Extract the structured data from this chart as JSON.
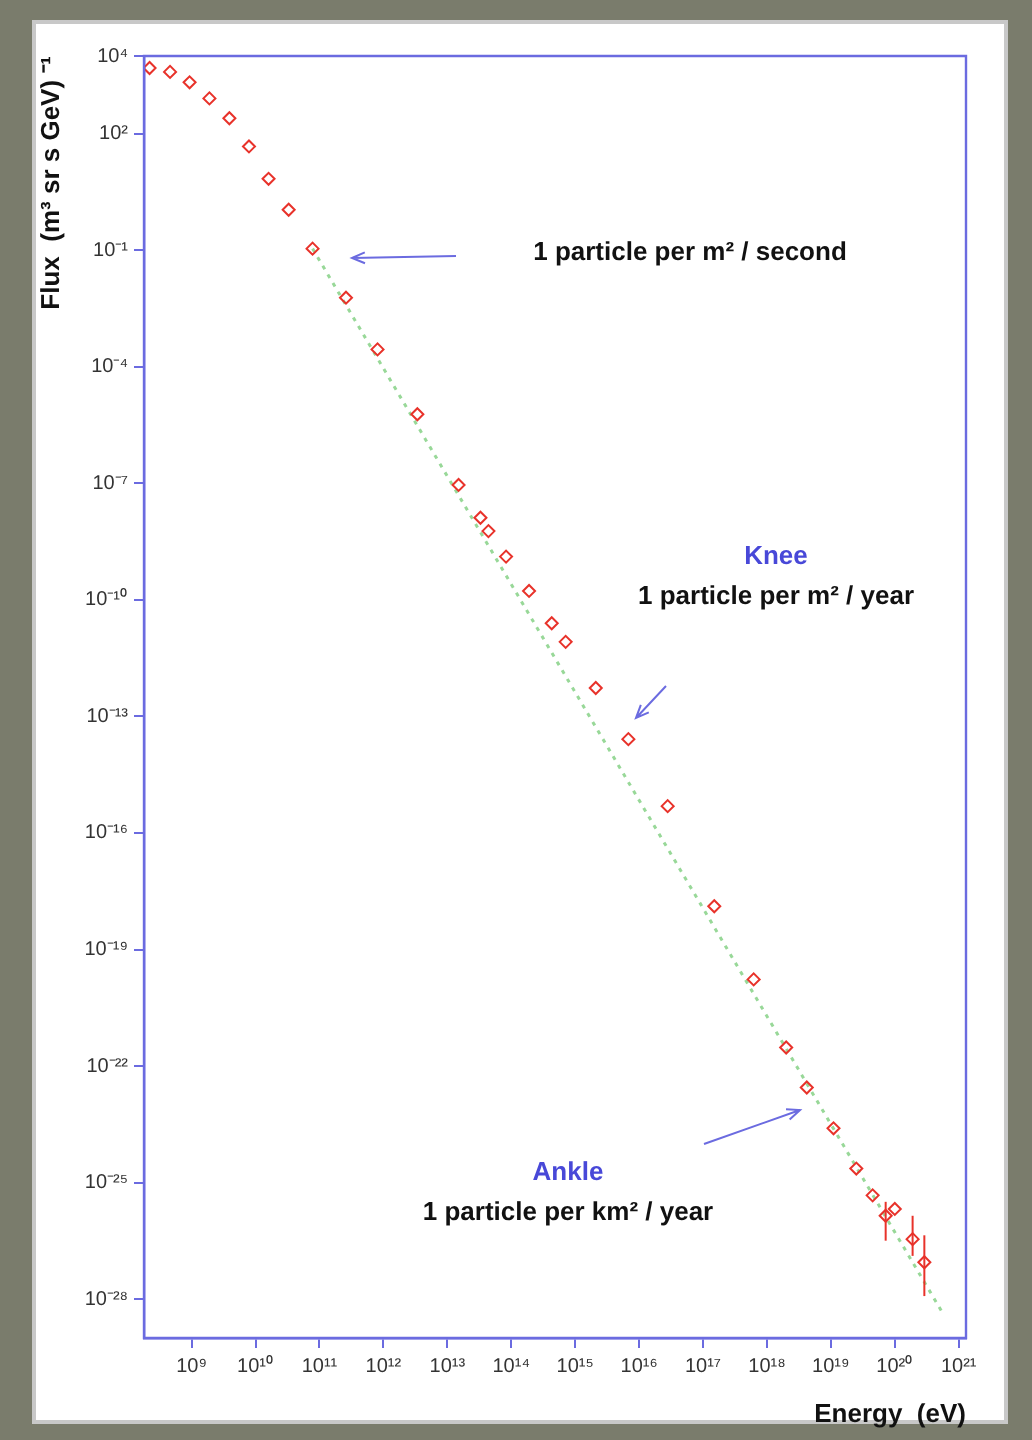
{
  "chart_data": {
    "type": "scatter",
    "xlabel": "Energy  (eV)",
    "ylabel": "Flux  (m³ sr s GeV) ⁻¹",
    "log": "xy",
    "grid": false,
    "legend": false,
    "xlim": [
      180000000.0,
      1.3e+21
    ],
    "ylim": [
      1e-29,
      10000.0
    ],
    "xticks": [
      {
        "value": 1000000000.0,
        "label": "10⁹"
      },
      {
        "value": 10000000000.0,
        "label": "10¹⁰"
      },
      {
        "value": 100000000000.0,
        "label": "10¹¹"
      },
      {
        "value": 1000000000000.0,
        "label": "10¹²"
      },
      {
        "value": 10000000000000.0,
        "label": "10¹³"
      },
      {
        "value": 100000000000000.0,
        "label": "10¹⁴"
      },
      {
        "value": 1000000000000000.0,
        "label": "10¹⁵"
      },
      {
        "value": 1e+16,
        "label": "10¹⁶"
      },
      {
        "value": 1e+17,
        "label": "10¹⁷"
      },
      {
        "value": 1e+18,
        "label": "10¹⁸"
      },
      {
        "value": 1e+19,
        "label": "10¹⁹"
      },
      {
        "value": 1e+20,
        "label": "10²⁰"
      },
      {
        "value": 1e+21,
        "label": "10²¹"
      }
    ],
    "yticks": [
      {
        "value": 10000.0,
        "label": "10⁴"
      },
      {
        "value": 100.0,
        "label": "10²"
      },
      {
        "value": 0.1,
        "label": "10⁻¹"
      },
      {
        "value": 0.0001,
        "label": "10⁻⁴"
      },
      {
        "value": 1e-07,
        "label": "10⁻⁷"
      },
      {
        "value": 1e-10,
        "label": "10⁻¹⁰"
      },
      {
        "value": 1e-13,
        "label": "10⁻¹³"
      },
      {
        "value": 1e-16,
        "label": "10⁻¹⁶"
      },
      {
        "value": 1e-19,
        "label": "10⁻¹⁹"
      },
      {
        "value": 1e-22,
        "label": "10⁻²²"
      },
      {
        "value": 1e-25,
        "label": "10⁻²⁵"
      },
      {
        "value": 1e-28,
        "label": "10⁻²⁸"
      }
    ],
    "series": [
      {
        "type": "scatter",
        "color": "#e8322a",
        "marker": "diamond",
        "x": [
          220000000.0,
          460000000.0,
          930000000.0,
          1900000000.0,
          3900000000.0,
          7900000000.0,
          16000000000.0,
          33000000000.0,
          78000000000.0,
          260000000000.0,
          810000000000.0,
          3400000000000.0,
          15000000000000.0,
          33000000000000.0,
          44000000000000.0,
          83000000000000.0,
          190000000000000.0,
          430000000000000.0,
          710000000000000.0,
          2100000000000000.0,
          6800000000000000.0,
          2.8e+16,
          1.5e+17,
          6.2e+17,
          2e+18,
          4.2e+18,
          1.1e+19,
          2.5e+19,
          4.5e+19,
          7.2e+19,
          1e+20,
          1.9e+20,
          2.9e+20
        ],
        "values": [
          4900.0,
          3900.0,
          2100.0,
          810.0,
          250.0,
          47,
          6.9,
          1.1,
          0.11,
          0.006,
          0.00028,
          6e-06,
          9.1e-08,
          1.3e-08,
          5.9e-09,
          1.3e-09,
          1.7e-10,
          2.5e-11,
          8.3e-12,
          5.4e-13,
          2.6e-14,
          4.9e-16,
          1.3e-18,
          1.7e-20,
          3e-22,
          2.8e-23,
          2.5e-24,
          2.3e-25,
          4.7e-26,
          1.4e-26,
          2.1e-26,
          3.5e-27,
          8.9e-28
        ],
        "errors": [
          null,
          null,
          null,
          null,
          null,
          null,
          null,
          null,
          null,
          null,
          null,
          null,
          null,
          null,
          null,
          null,
          null,
          null,
          null,
          null,
          null,
          null,
          null,
          null,
          null,
          null,
          null,
          null,
          null,
          [
            3.2e-27,
            3.2e-26
          ],
          null,
          [
            1.3e-27,
            1.4e-26
          ],
          [
            1.2e-28,
            4.4e-27
          ]
        ]
      },
      {
        "type": "line",
        "color": "#98d898",
        "line_style": "dotted",
        "marker": "none",
        "x": [
          78000000000.0,
          5.8e+20
        ],
        "values": [
          0.11,
          4e-29
        ]
      }
    ],
    "annotations": [
      "1 particle per m² / second",
      "Knee\n1 particle per m² / year",
      "Ankle\n1 particle per km² / year"
    ]
  }
}
